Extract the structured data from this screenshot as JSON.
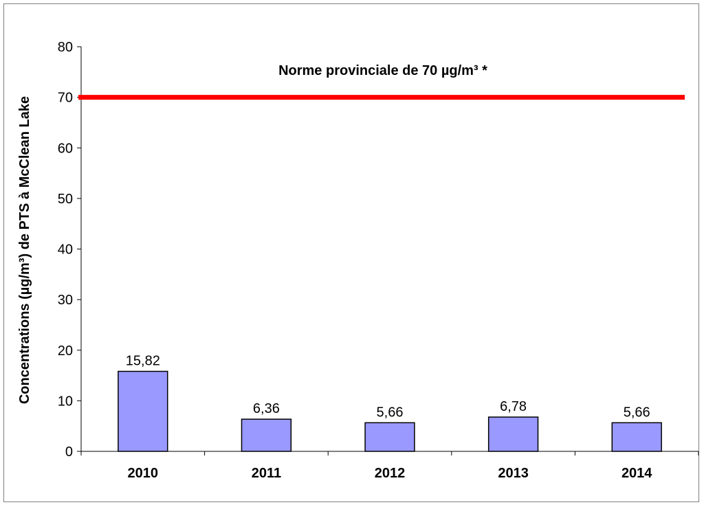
{
  "chart_data": {
    "type": "bar",
    "categories": [
      "2010",
      "2011",
      "2012",
      "2013",
      "2014"
    ],
    "values": [
      15.82,
      6.36,
      5.66,
      6.78,
      5.66
    ],
    "data_labels": [
      "15,82",
      "6,36",
      "5,66",
      "6,78",
      "5,66"
    ],
    "ylabel": "Concentrations (µg/m³) de PTS à McClean Lake",
    "ylim": [
      0,
      80
    ],
    "yticks": [
      0,
      10,
      20,
      30,
      40,
      50,
      60,
      70,
      80
    ],
    "grid": false,
    "legend": "none",
    "reference_line": {
      "value": 70,
      "label": "Norme provinciale de 70 µg/m³ *",
      "color": "#ff0000"
    },
    "bar_color": "#9999ff",
    "bar_edge_color": "#000000"
  }
}
